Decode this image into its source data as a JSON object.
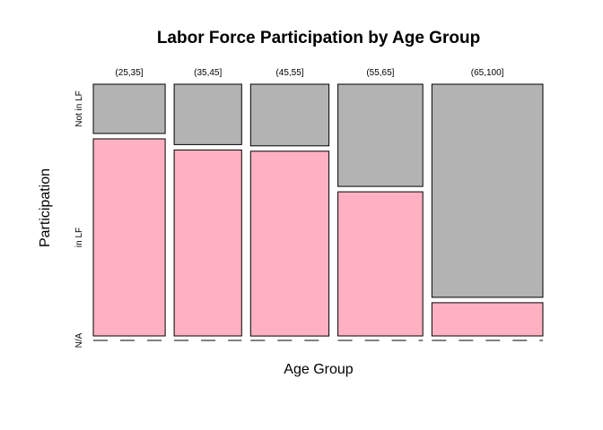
{
  "chart_data": {
    "type": "mosaic",
    "title": "Labor Force Participation by Age Group",
    "xlabel": "Age Group",
    "ylabel": "Participation",
    "categories": [
      "(25,35]",
      "(35,45]",
      "(45,55]",
      "(55,65]",
      "(65,100]"
    ],
    "category_proportions": [
      0.165,
      0.155,
      0.18,
      0.195,
      0.255
    ],
    "y_levels": [
      "N/A",
      "in LF",
      "Not in LF"
    ],
    "series": [
      {
        "name": "N/A",
        "values": [
          0.0,
          0.0,
          0.0,
          0.0,
          0.0
        ],
        "color": "#ffffff"
      },
      {
        "name": "in LF",
        "values": [
          0.8,
          0.755,
          0.75,
          0.585,
          0.135
        ],
        "color": "#ffb1c1"
      },
      {
        "name": "Not in LF",
        "values": [
          0.2,
          0.245,
          0.25,
          0.415,
          0.865
        ],
        "color": "#b3b3b3"
      }
    ]
  }
}
